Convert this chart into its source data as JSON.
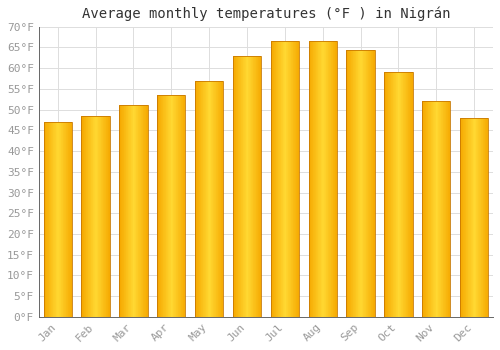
{
  "title": "Average monthly temperatures (°F ) in Nigrán",
  "months": [
    "Jan",
    "Feb",
    "Mar",
    "Apr",
    "May",
    "Jun",
    "Jul",
    "Aug",
    "Sep",
    "Oct",
    "Nov",
    "Dec"
  ],
  "values": [
    47,
    48.5,
    51,
    53.5,
    57,
    63,
    66.5,
    66.5,
    64.5,
    59,
    52,
    48
  ],
  "bar_color_center": "#FFD040",
  "bar_color_edge": "#F5A800",
  "bar_edge_color": "#C87800",
  "background_color": "#ffffff",
  "grid_color": "#dddddd",
  "ylim": [
    0,
    70
  ],
  "yticks": [
    0,
    5,
    10,
    15,
    20,
    25,
    30,
    35,
    40,
    45,
    50,
    55,
    60,
    65,
    70
  ],
  "title_fontsize": 10,
  "tick_fontsize": 8,
  "tick_label_color": "#999999",
  "ylabel_suffix": "°F"
}
